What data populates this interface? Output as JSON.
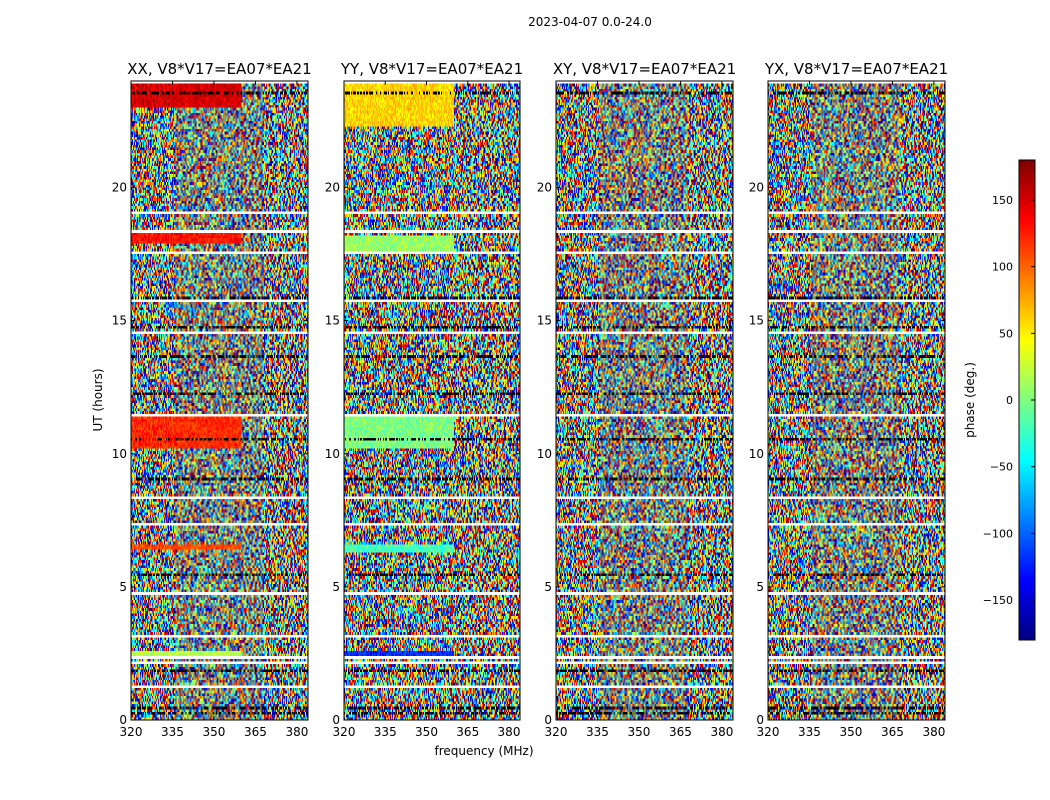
{
  "figure": {
    "suptitle": "2023-04-07 0.0-24.0",
    "xlabel": "frequency (MHz)",
    "ylabel": "UT (hours)"
  },
  "colorbar": {
    "label": "phase (deg.)",
    "range": [
      -180,
      180
    ],
    "ticks": [
      -150,
      -100,
      -50,
      0,
      50,
      100,
      150
    ],
    "tick_labels": [
      "−150",
      "−100",
      "−50",
      "0",
      "50",
      "100",
      "150"
    ],
    "colormap": "jet",
    "colors": [
      "#00007f",
      "#0000ff",
      "#007fff",
      "#00ffff",
      "#7fff7f",
      "#ffff00",
      "#ff7f00",
      "#ff0000",
      "#7f0000"
    ]
  },
  "chart_data": [
    {
      "type": "heatmap",
      "title": "XX, V8*V17=EA07*EA21",
      "x_range": [
        320,
        384
      ],
      "y_range": [
        0,
        24
      ],
      "x_ticks": [
        320,
        335,
        350,
        365,
        380
      ],
      "x_tick_labels": [
        "320",
        "335",
        "350",
        "365",
        "380"
      ],
      "y_ticks": [
        0,
        5,
        10,
        15,
        20
      ],
      "y_tick_labels": [
        "0",
        "5",
        "10",
        "15",
        "20"
      ],
      "coherent_bands": [
        {
          "y": [
            23.0,
            24.0
          ],
          "x": [
            320,
            360
          ],
          "phase": 150
        },
        {
          "y": [
            17.9,
            18.3
          ],
          "x": [
            320,
            360
          ],
          "phase": 130
        },
        {
          "y": [
            10.2,
            11.4
          ],
          "x": [
            320,
            360
          ],
          "phase": 120
        },
        {
          "y": [
            6.4,
            6.6
          ],
          "x": [
            320,
            360
          ],
          "phase": 110
        },
        {
          "y": [
            2.4,
            2.6
          ],
          "x": [
            320,
            360
          ],
          "phase": 20
        }
      ]
    },
    {
      "type": "heatmap",
      "title": "YY, V8*V17=EA07*EA21",
      "x_range": [
        320,
        384
      ],
      "y_range": [
        0,
        24
      ],
      "x_ticks": [
        320,
        335,
        350,
        365,
        380
      ],
      "x_tick_labels": [
        "320",
        "335",
        "350",
        "365",
        "380"
      ],
      "y_ticks": [
        0,
        5,
        10,
        15,
        20
      ],
      "y_tick_labels": [
        "0",
        "5",
        "10",
        "15",
        "20"
      ],
      "coherent_bands": [
        {
          "y": [
            22.3,
            24.0
          ],
          "x": [
            320,
            360
          ],
          "phase": 60
        },
        {
          "y": [
            17.6,
            18.2
          ],
          "x": [
            320,
            360
          ],
          "phase": 10
        },
        {
          "y": [
            10.2,
            11.4
          ],
          "x": [
            320,
            360
          ],
          "phase": 0
        },
        {
          "y": [
            6.3,
            6.6
          ],
          "x": [
            320,
            360
          ],
          "phase": -20
        },
        {
          "y": [
            2.4,
            2.6
          ],
          "x": [
            320,
            360
          ],
          "phase": -120
        }
      ]
    },
    {
      "type": "heatmap",
      "title": "XY, V8*V17=EA07*EA21",
      "x_range": [
        320,
        384
      ],
      "y_range": [
        0,
        24
      ],
      "x_ticks": [
        320,
        335,
        350,
        365,
        380
      ],
      "x_tick_labels": [
        "320",
        "335",
        "350",
        "365",
        "380"
      ],
      "y_ticks": [
        0,
        5,
        10,
        15,
        20
      ],
      "y_tick_labels": [
        "0",
        "5",
        "10",
        "15",
        "20"
      ],
      "coherent_bands": []
    },
    {
      "type": "heatmap",
      "title": "YX, V8*V17=EA07*EA21",
      "x_range": [
        320,
        384
      ],
      "y_range": [
        0,
        24
      ],
      "x_ticks": [
        320,
        335,
        350,
        365,
        380
      ],
      "x_tick_labels": [
        "320",
        "335",
        "350",
        "365",
        "380"
      ],
      "y_ticks": [
        0,
        5,
        10,
        15,
        20
      ],
      "y_tick_labels": [
        "0",
        "5",
        "10",
        "15",
        "20"
      ],
      "coherent_bands": []
    }
  ]
}
